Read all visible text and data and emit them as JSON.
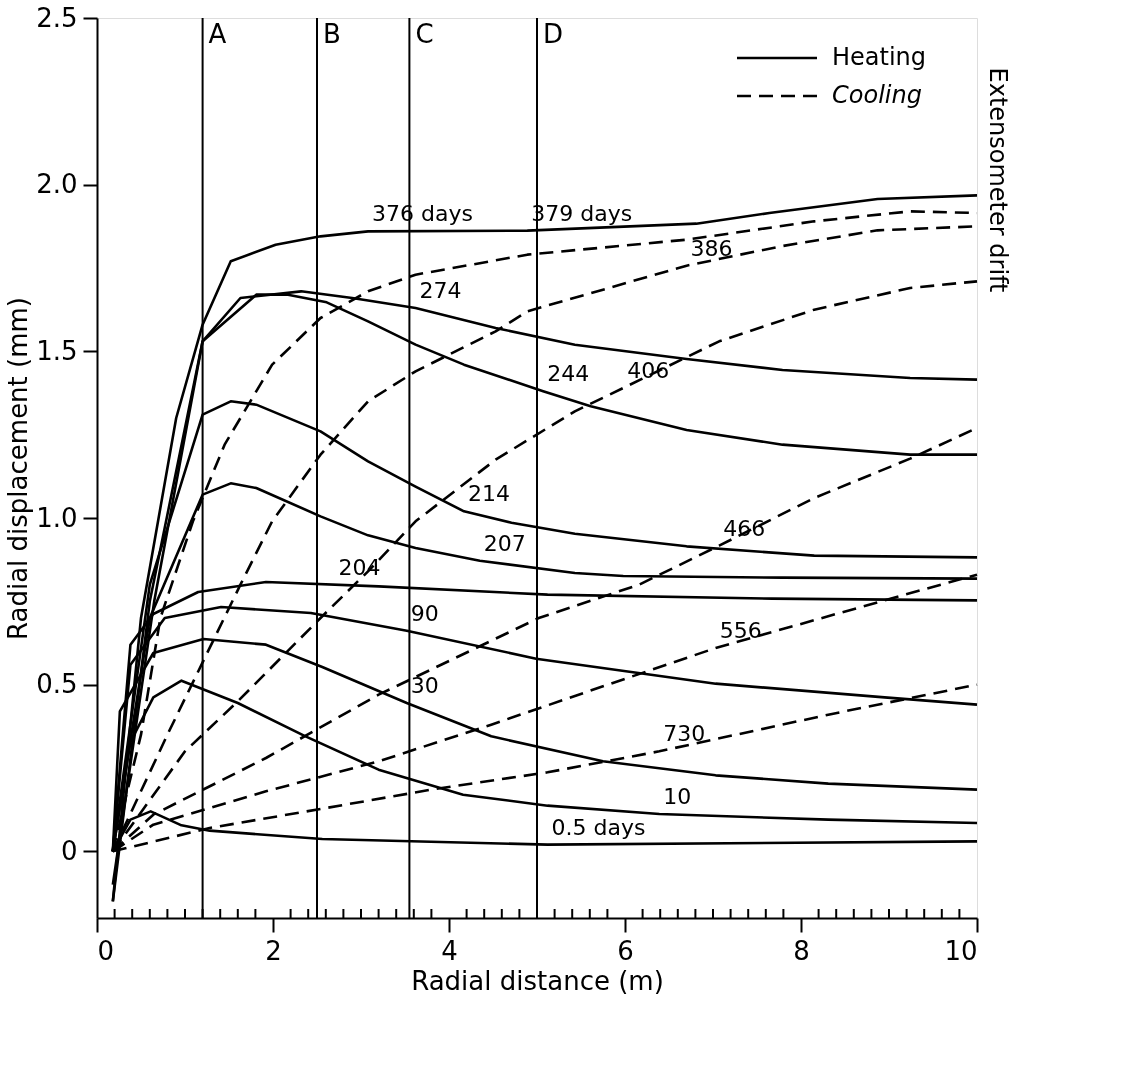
{
  "chart_data": {
    "type": "line",
    "xlabel": "Radial distance (m)",
    "ylabel": "Radial displacement (mm)",
    "xlim": [
      0,
      10
    ],
    "ylim": [
      -0.2,
      2.5
    ],
    "xticks": [
      0,
      {
        "value": 0.2,
        "label": null
      },
      {
        "value": 0.4,
        "label": null
      },
      {
        "value": 0.6,
        "label": null
      },
      {
        "value": 0.8,
        "label": null
      },
      {
        "value": 1,
        "label": null
      },
      {
        "value": 1.2,
        "label": null
      },
      {
        "value": 1.4,
        "label": null
      },
      {
        "value": 1.6,
        "label": null
      },
      {
        "value": 1.8,
        "label": null
      },
      2,
      {
        "value": 2.2,
        "label": null
      },
      {
        "value": 2.4,
        "label": null
      },
      {
        "value": 2.6,
        "label": null
      },
      {
        "value": 2.8,
        "label": null
      },
      {
        "value": 3,
        "label": null
      },
      {
        "value": 3.2,
        "label": null
      },
      {
        "value": 3.4,
        "label": null
      },
      {
        "value": 3.6,
        "label": null
      },
      {
        "value": 3.8,
        "label": null
      },
      4,
      {
        "value": 4.2,
        "label": null
      },
      {
        "value": 4.4,
        "label": null
      },
      {
        "value": 4.6,
        "label": null
      },
      {
        "value": 4.8,
        "label": null
      },
      {
        "value": 5,
        "label": null
      },
      {
        "value": 5.2,
        "label": null
      },
      {
        "value": 5.4,
        "label": null
      },
      {
        "value": 5.6,
        "label": null
      },
      {
        "value": 5.8,
        "label": null
      },
      6,
      {
        "value": 6.2,
        "label": null
      },
      {
        "value": 6.4,
        "label": null
      },
      {
        "value": 6.6,
        "label": null
      },
      {
        "value": 6.8,
        "label": null
      },
      {
        "value": 7,
        "label": null
      },
      {
        "value": 7.2,
        "label": null
      },
      {
        "value": 7.4,
        "label": null
      },
      {
        "value": 7.6,
        "label": null
      },
      {
        "value": 7.8,
        "label": null
      },
      8,
      {
        "value": 8.2,
        "label": null
      },
      {
        "value": 8.4,
        "label": null
      },
      {
        "value": 8.6,
        "label": null
      },
      {
        "value": 8.8,
        "label": null
      },
      {
        "value": 9,
        "label": null
      },
      {
        "value": 9.2,
        "label": null
      },
      {
        "value": 9.4,
        "label": null
      },
      {
        "value": 9.6,
        "label": null
      },
      {
        "value": 9.8,
        "label": null
      },
      10
    ],
    "yticks": [
      0,
      0.5,
      {
        "value": 1,
        "label": "1.0"
      },
      1.5,
      {
        "value": 2,
        "label": "2.0"
      },
      2.5
    ],
    "grid": false,
    "legend": "top right",
    "marker": "none",
    "series": [
      {
        "name": "Heating",
        "color": "#000000",
        "line_style": "solid",
        "x": [
          0.18,
          0.5,
          0.9,
          1.2,
          1.52,
          2.03,
          2.54,
          3.08,
          4.89,
          6.81,
          7.64,
          8.87,
          10
        ],
        "values": [
          -0.15,
          0.7,
          1.3,
          1.58,
          1.77,
          1.82,
          1.845,
          1.86,
          1.862,
          1.883,
          1.915,
          1.957,
          1.968
        ]
      },
      {
        "color": "#000000",
        "line_style": "solid",
        "x": [
          0.18,
          0.6,
          1.2,
          1.63,
          2.32,
          2.9,
          3.62,
          4.53,
          5.43,
          6.7,
          7.79,
          9.24,
          10
        ],
        "values": [
          -0.15,
          0.75,
          1.53,
          1.66,
          1.68,
          1.66,
          1.63,
          1.57,
          1.52,
          1.477,
          1.444,
          1.42,
          1.415
        ]
      },
      {
        "color": "#000000",
        "line_style": "solid",
        "x": [
          0.18,
          0.65,
          1.2,
          1.81,
          2.17,
          2.61,
          3.08,
          3.62,
          4.17,
          5.07,
          5.61,
          6.7,
          7.79,
          9.24,
          10
        ],
        "values": [
          -0.1,
          0.75,
          1.53,
          1.67,
          1.67,
          1.647,
          1.59,
          1.52,
          1.46,
          1.38,
          1.335,
          1.264,
          1.22,
          1.19,
          1.19
        ]
      },
      {
        "color": "#000000",
        "line_style": "solid",
        "x": [
          0.18,
          0.6,
          1.2,
          1.52,
          1.81,
          2.54,
          3.08,
          3.62,
          4.17,
          4.71,
          5.43,
          6.7,
          8.15,
          10
        ],
        "values": [
          0,
          0.8,
          1.31,
          1.35,
          1.34,
          1.26,
          1.17,
          1.094,
          1.02,
          0.986,
          0.953,
          0.915,
          0.887,
          0.882
        ]
      },
      {
        "color": "#000000",
        "line_style": "solid",
        "x": [
          0.18,
          0.6,
          1.2,
          1.52,
          1.81,
          2.54,
          3.08,
          3.62,
          4.35,
          5.43,
          5.98,
          7.79,
          10
        ],
        "values": [
          0,
          0.7,
          1.07,
          1.104,
          1.09,
          1.005,
          0.948,
          0.91,
          0.872,
          0.835,
          0.826,
          0.821,
          0.818
        ]
      },
      {
        "color": "#000000",
        "line_style": "solid",
        "x": [
          0.18,
          0.38,
          0.64,
          1.15,
          1.92,
          3.2,
          5.12,
          7.67,
          10
        ],
        "values": [
          0,
          0.62,
          0.712,
          0.778,
          0.808,
          0.795,
          0.77,
          0.758,
          0.753
        ]
      },
      {
        "color": "#000000",
        "line_style": "solid",
        "x": [
          0.18,
          0.38,
          0.77,
          1.41,
          2.43,
          3.52,
          4.99,
          7.03,
          8.95,
          10
        ],
        "values": [
          0,
          0.56,
          0.7,
          0.733,
          0.715,
          0.662,
          0.578,
          0.503,
          0.462,
          0.44
        ]
      },
      {
        "color": "#000000",
        "line_style": "solid",
        "x": [
          0.18,
          0.26,
          0.64,
          1.21,
          1.92,
          2.56,
          3.52,
          4.48,
          5.75,
          7.03,
          8.31,
          10
        ],
        "values": [
          0,
          0.42,
          0.595,
          0.637,
          0.62,
          0.553,
          0.445,
          0.345,
          0.27,
          0.228,
          0.203,
          0.185
        ]
      },
      {
        "color": "#000000",
        "line_style": "solid",
        "x": [
          0.18,
          0.38,
          0.64,
          0.96,
          1.6,
          2.37,
          3.2,
          4.16,
          5.12,
          6.39,
          8.31,
          10
        ],
        "values": [
          0,
          0.328,
          0.462,
          0.512,
          0.445,
          0.345,
          0.245,
          0.17,
          0.137,
          0.112,
          0.095,
          0.085
        ]
      },
      {
        "color": "#000000",
        "line_style": "solid",
        "x": [
          0.18,
          0.38,
          0.61,
          0.96,
          1.28,
          2.56,
          5.12,
          10
        ],
        "values": [
          0,
          0.095,
          0.12,
          0.078,
          0.062,
          0.037,
          0.02,
          0.03
        ]
      },
      {
        "name": "Cooling",
        "color": "#000000",
        "line_style": "dashed",
        "x": [
          0.18,
          0.5,
          0.72,
          1.09,
          1.45,
          1.99,
          2.54,
          3.08,
          3.62,
          4.89,
          6.7,
          8.15,
          9.24,
          10
        ],
        "values": [
          0,
          0.35,
          0.7,
          0.99,
          1.22,
          1.46,
          1.6,
          1.68,
          1.73,
          1.79,
          1.835,
          1.89,
          1.92,
          1.915
        ]
      },
      {
        "color": "#000000",
        "line_style": "dashed",
        "x": [
          0.18,
          0.8,
          1.63,
          1.99,
          2.54,
          3.08,
          3.62,
          4.53,
          4.89,
          6.7,
          7.79,
          8.87,
          10
        ],
        "values": [
          0,
          0.35,
          0.8,
          0.99,
          1.19,
          1.35,
          1.44,
          1.56,
          1.62,
          1.757,
          1.816,
          1.863,
          1.875
        ]
      },
      {
        "color": "#000000",
        "line_style": "dashed",
        "x": [
          0.18,
          1.0,
          1.6,
          2.54,
          3.08,
          3.62,
          4.53,
          5.43,
          5.98,
          7.07,
          8.15,
          9.24,
          10
        ],
        "values": [
          0,
          0.3,
          0.45,
          0.7,
          0.84,
          0.99,
          1.175,
          1.32,
          1.39,
          1.53,
          1.625,
          1.69,
          1.71
        ]
      },
      {
        "color": "#000000",
        "line_style": "dashed",
        "x": [
          0.18,
          0.64,
          1.92,
          3.2,
          5.02,
          6.16,
          7.07,
          8.15,
          9.24,
          10
        ],
        "values": [
          0,
          0.11,
          0.28,
          0.47,
          0.7,
          0.8,
          0.917,
          1.06,
          1.178,
          1.27
        ]
      },
      {
        "color": "#000000",
        "line_style": "dashed",
        "x": [
          0.18,
          0.64,
          1.92,
          3.2,
          4.48,
          5.75,
          7.03,
          8.95,
          10
        ],
        "values": [
          0,
          0.08,
          0.18,
          0.27,
          0.38,
          0.495,
          0.61,
          0.753,
          0.83
        ]
      },
      {
        "color": "#000000",
        "line_style": "dashed",
        "x": [
          0.18,
          1.28,
          2.56,
          3.84,
          5.12,
          6.39,
          8.31,
          10
        ],
        "values": [
          0,
          0.07,
          0.128,
          0.187,
          0.237,
          0.3,
          0.41,
          0.5
        ]
      }
    ],
    "ref_lines": [
      {
        "axis": "x",
        "value": 1.2,
        "label": "A",
        "color": "#000000"
      },
      {
        "axis": "x",
        "value": 2.5,
        "label": "B",
        "color": "#000000"
      },
      {
        "axis": "x",
        "value": 3.55,
        "label": "C",
        "color": "#000000"
      },
      {
        "axis": "x",
        "value": 5.0,
        "label": "D",
        "color": "#000000"
      }
    ],
    "annotations": [
      {
        "text": "376 days",
        "x": 3.08,
        "y": 1.86
      },
      {
        "text": "379 days",
        "x": 4.89,
        "y": 1.862
      },
      {
        "text": "274",
        "x": 3.62,
        "y": 1.63
      },
      {
        "text": "244",
        "x": 5.07,
        "y": 1.38
      },
      {
        "text": "214",
        "x": 4.17,
        "y": 1.02
      },
      {
        "text": "207",
        "x": 4.35,
        "y": 0.872
      },
      {
        "text": "204",
        "x": 2.7,
        "y": 0.8
      },
      {
        "text": "90",
        "x": 3.52,
        "y": 0.662
      },
      {
        "text": "30",
        "x": 3.52,
        "y": 0.445
      },
      {
        "text": "10",
        "x": 6.39,
        "y": 0.112
      },
      {
        "text": "0.5 days",
        "x": 5.12,
        "y": 0.02
      },
      {
        "text": "386",
        "x": 6.7,
        "y": 1.757
      },
      {
        "text": "406",
        "x": 5.98,
        "y": 1.39
      },
      {
        "text": "466",
        "x": 7.07,
        "y": 0.917
      },
      {
        "text": "556",
        "x": 7.03,
        "y": 0.61
      },
      {
        "text": "730",
        "x": 6.39,
        "y": 0.3
      },
      "Extensometer drift"
    ]
  }
}
